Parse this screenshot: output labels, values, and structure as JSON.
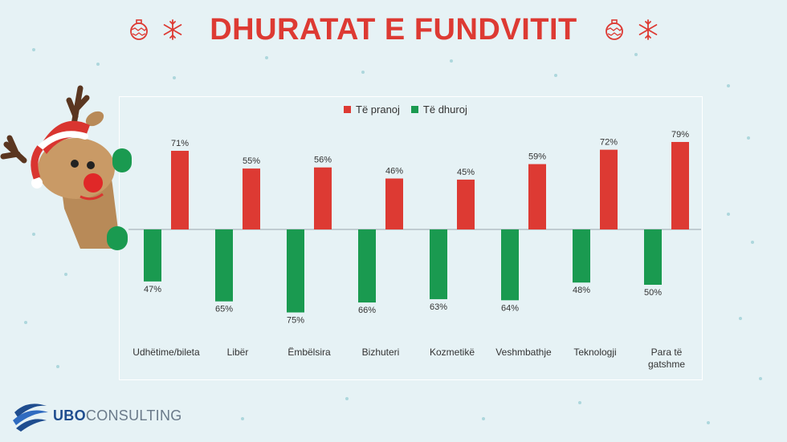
{
  "title": "DHURATAT E FUNDVITIT",
  "legend": {
    "receive": "Të pranoj",
    "give": "Të dhuroj"
  },
  "colors": {
    "receive": "#dd3a33",
    "give": "#1a9a50",
    "title": "#dd3a33",
    "background": "#e6f2f5"
  },
  "logo": {
    "brand": "UBO",
    "rest": "CONSULTING"
  },
  "icons": [
    "ornament-icon",
    "snowflake-icon",
    "reindeer-icon"
  ],
  "chart_data": {
    "type": "bar",
    "categories": [
      "Udhëtime/bileta",
      "Libër",
      "Ëmbëlsira",
      "Bizhuteri",
      "Kozmetikë",
      "Veshmbathje",
      "Teknologji",
      "Para të gatshme"
    ],
    "category_lines": [
      [
        "Udhëtime/bileta"
      ],
      [
        "Libër"
      ],
      [
        "Ëmbëlsira"
      ],
      [
        "Bizhuteri"
      ],
      [
        "Kozmetikë"
      ],
      [
        "Veshmbathje"
      ],
      [
        "Teknologji"
      ],
      [
        "Para të",
        "gatshme"
      ]
    ],
    "series": [
      {
        "name": "Të pranoj",
        "key": "receive",
        "values": [
          71,
          55,
          56,
          46,
          45,
          59,
          72,
          79
        ],
        "labels": [
          "71%",
          "55%",
          "56%",
          "46%",
          "45%",
          "59%",
          "72%",
          "79%"
        ]
      },
      {
        "name": "Të dhuroj",
        "key": "give",
        "values": [
          47,
          65,
          75,
          66,
          63,
          64,
          48,
          50
        ],
        "labels": [
          "47%",
          "65%",
          "75%",
          "66%",
          "63%",
          "64%",
          "48%",
          "50%"
        ]
      }
    ],
    "direction": {
      "receive": "up",
      "give": "down"
    },
    "ylim": [
      0,
      100
    ],
    "grid": false,
    "legend_position": "top-center"
  }
}
